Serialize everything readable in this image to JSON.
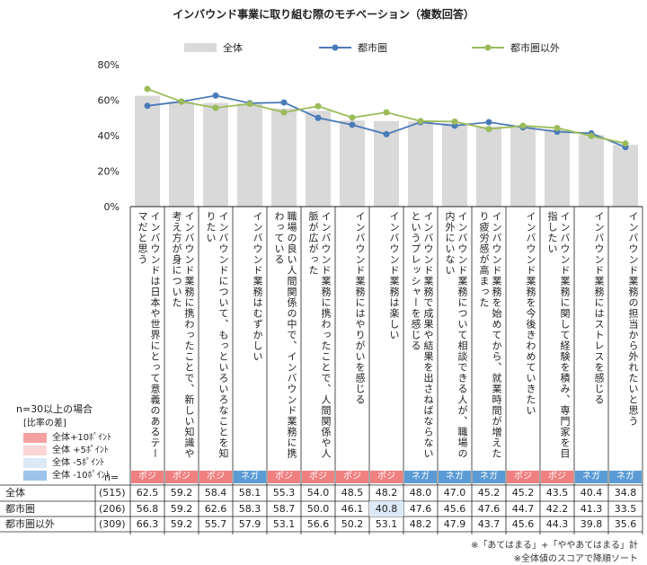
{
  "chart_data": {
    "type": "bar",
    "title": "インバウンド事業に取り組む際のモチベーション（複数回答）",
    "yticks": [
      "0%",
      "20%",
      "40%",
      "60%",
      "80%"
    ],
    "ylim": [
      0,
      80
    ],
    "categories": [
      "インバウンドは日本や世界にとって意義のあるテーマだと思う",
      "インバウンド業務に携わったことで、新しい知識や考え方が身についた",
      "インバウンドについて、もっといろいろなことを知りたい",
      "インバウンド業務はむずかしい",
      "職場の良い人間関係の中で、インバウンド業務に携わっている",
      "インバウンド業務に携わったことで、人間関係や人脈が広がった",
      "インバウンド業務にはやりがいを感じる",
      "インバウンド業務は楽しい",
      "インバウンド業務で成果や結果を出さねばならないというプレッシャーを感じる",
      "インバウンド業務について相談できる人が、職場の内外にいない",
      "インバウンド業務を始めてから、就業時間が増えたり疲労感が高まった",
      "インバウンド業務を今後きわめていきたい",
      "インバウンド業務に関して経験を積み、専門家を目指したい",
      "インバウンド業務にはストレスを感じる",
      "インバウンド業務の担当から外れたいと思う"
    ],
    "series": [
      {
        "name": "全体",
        "values": [
          62.5,
          59.2,
          58.4,
          58.1,
          55.3,
          54.0,
          48.5,
          48.2,
          48.0,
          47.0,
          45.2,
          45.2,
          43.5,
          40.4,
          34.8
        ]
      },
      {
        "name": "都市圏",
        "values": [
          56.8,
          59.2,
          62.6,
          58.3,
          58.7,
          50.0,
          46.1,
          40.8,
          47.6,
          45.6,
          47.6,
          44.7,
          42.2,
          41.3,
          33.5
        ]
      },
      {
        "name": "都市圏以外",
        "values": [
          66.3,
          59.2,
          55.7,
          57.9,
          53.1,
          56.6,
          50.2,
          53.1,
          48.2,
          47.9,
          43.7,
          45.6,
          44.3,
          39.8,
          35.6
        ]
      }
    ],
    "series_colors": [
      "#d9d9d9",
      "#4a7ab8",
      "#9bbb59"
    ],
    "badges": [
      "ポジ",
      "ポジ",
      "ポジ",
      "ネガ",
      "ポジ",
      "ポジ",
      "ポジ",
      "ポジ",
      "ネガ",
      "ネガ",
      "ネガ",
      "ポジ",
      "ポジ",
      "ネガ",
      "ネガ"
    ],
    "badge_colors": {
      "ポジ": "#f08080",
      "ネガ": "#5b9bd5"
    },
    "highlight": {
      "row": 1,
      "col": 7,
      "color": "#dce9f7"
    }
  },
  "table": {
    "n_header": "n=",
    "rows": [
      {
        "label": "全体",
        "n": "(515)"
      },
      {
        "label": "都市圏",
        "n": "(206)"
      },
      {
        "label": "都市圏以外",
        "n": "(309)"
      }
    ]
  },
  "side_legend": {
    "title": "n=30以上の場合",
    "subtitle": "[比率の差]",
    "items": [
      {
        "label": "全体+10ﾎﾟｲﾝﾄ",
        "color": "#f4a0a0"
      },
      {
        "label": "全体 +5ﾎﾟｲﾝﾄ",
        "color": "#fbd5d5"
      },
      {
        "label": "全体 -5ﾎﾟｲﾝﾄ",
        "color": "#dce9f7"
      },
      {
        "label": "全体 -10ﾎﾟｲﾝﾄ",
        "color": "#9cc3ea"
      }
    ]
  },
  "notes": [
    "※「あてはまる」+「ややあてはまる」計",
    "※全体値のスコアで降順ソート"
  ]
}
